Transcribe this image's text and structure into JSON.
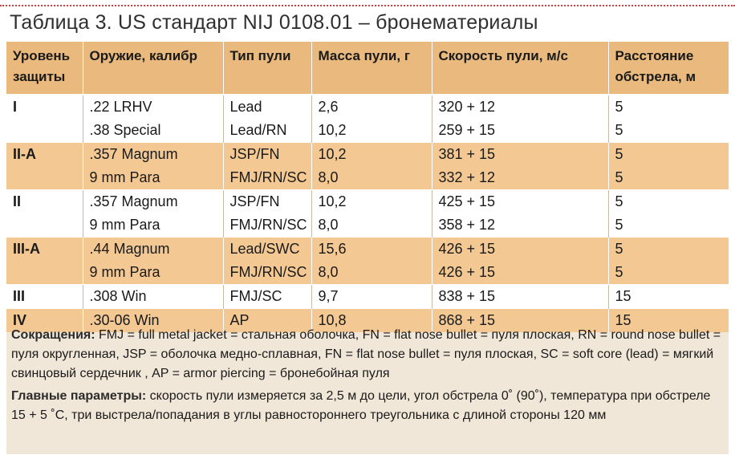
{
  "document": {
    "title": "Таблица 3. US стандарт NIJ 0108.01 – бронематериалы"
  },
  "table": {
    "headers": [
      "Уровень защиты",
      "Оружие, калибр",
      "Тип пули",
      "Масса пули, г",
      "Скорость пули, м/с",
      "Расстояние обстрела, м"
    ],
    "rows": [
      {
        "level": "I",
        "weapon": ".22 LRHV",
        "bullet": "Lead",
        "mass": "2,6",
        "speed": "320 + 12",
        "distance": "5"
      },
      {
        "level": "",
        "weapon": ".38 Special",
        "bullet": "Lead/RN",
        "mass": "10,2",
        "speed": "259 + 15",
        "distance": "5"
      },
      {
        "level": "II-A",
        "weapon": ".357 Magnum",
        "bullet": "JSP/FN",
        "mass": "10,2",
        "speed": "381 + 15",
        "distance": "5"
      },
      {
        "level": "",
        "weapon": "9 mm Para",
        "bullet": "FMJ/RN/SC",
        "mass": "8,0",
        "speed": "332 + 12",
        "distance": "5"
      },
      {
        "level": "II",
        "weapon": ".357 Magnum",
        "bullet": "JSP/FN",
        "mass": "10,2",
        "speed": "425 + 15",
        "distance": "5"
      },
      {
        "level": "",
        "weapon": "9 mm Para",
        "bullet": "FMJ/RN/SC",
        "mass": "8,0",
        "speed": "358 + 12",
        "distance": "5"
      },
      {
        "level": "III-A",
        "weapon": ".44 Magnum",
        "bullet": "Lead/SWC",
        "mass": "15,6",
        "speed": "426 + 15",
        "distance": "5"
      },
      {
        "level": "",
        "weapon": "9 mm Para",
        "bullet": "FMJ/RN/SC",
        "mass": "8,0",
        "speed": "426 + 15",
        "distance": "5"
      },
      {
        "level": "III",
        "weapon": ".308 Win",
        "bullet": "FMJ/SC",
        "mass": "9,7",
        "speed": "838 + 15",
        "distance": "15"
      },
      {
        "level": "IV",
        "weapon": ".30-06 Win",
        "bullet": "AP",
        "mass": "10,8",
        "speed": "868 + 15",
        "distance": "15"
      }
    ]
  },
  "notes": {
    "abbrev_label": "Сокращения:",
    "abbrev_text": "FMJ = full metal jacket = стальная оболочка, FN = flat nose bullet = пуля плоская, RN = round nose bullet = пуля округленная, JSP = оболочка медно-сплавная, FN = flat nose bullet = пуля плоская, SC = soft core (lead) = мягкий свинцовый сердечник , AP = armor piercing = бронебойная пуля",
    "params_label": "Главные параметры:",
    "params_text": "скорость пули измеряется за 2,5 м до цели, угол обстрела 0˚ (90˚), температура при обстреле 15 + 5 ˚С, три выстрела/попадания в углы равностороннего треугольника с длиной стороны 120 мм"
  }
}
